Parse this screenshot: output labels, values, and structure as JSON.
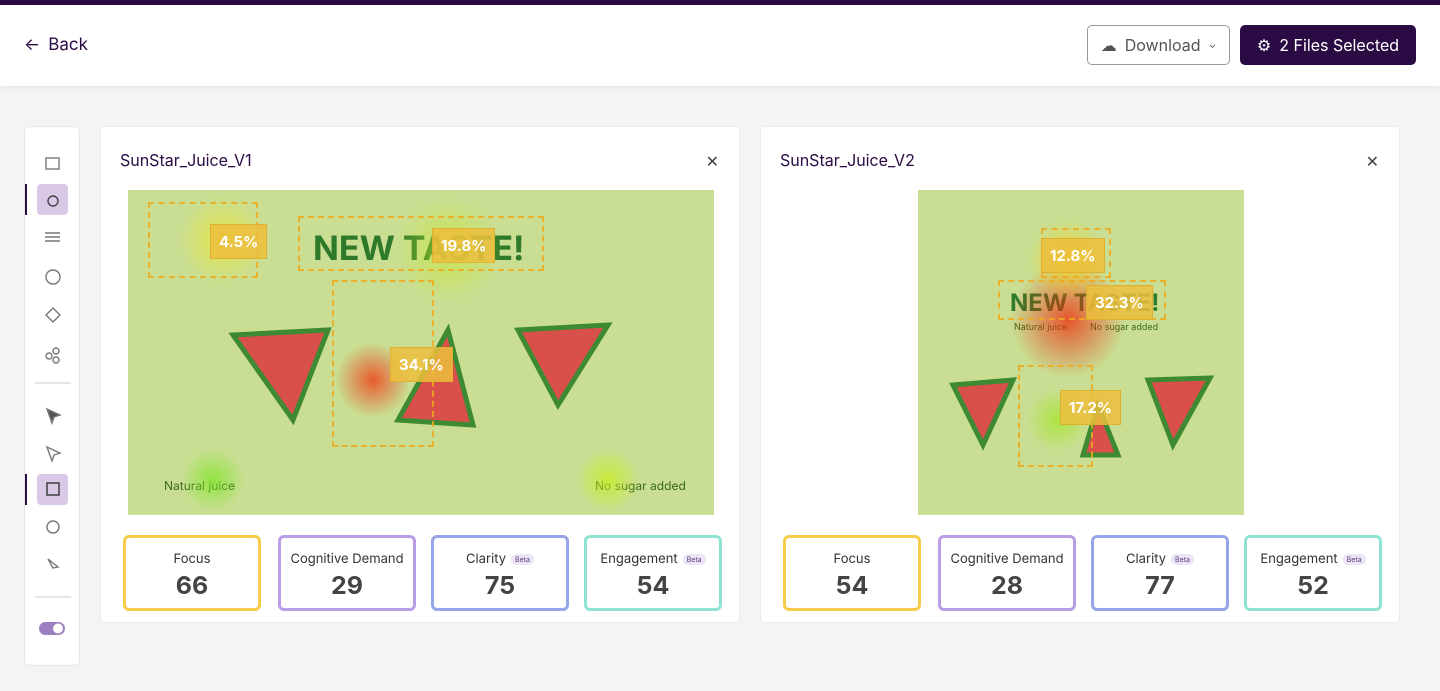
{
  "header": {
    "back": "Back",
    "download": "Download",
    "selected": "2 Files Selected"
  },
  "panels": [
    {
      "title": "SunStar_Juice_V1",
      "image": {
        "headline": "NEW TASTE!",
        "left_text": "Natural juice",
        "right_text": "No sugar added",
        "labels": [
          "4.5%",
          "19.8%",
          "34.1%"
        ]
      },
      "metrics": [
        {
          "name": "Focus",
          "value": 66
        },
        {
          "name": "Cognitive Demand",
          "value": 29
        },
        {
          "name": "Clarity",
          "badge": "Beta",
          "value": 75
        },
        {
          "name": "Engagement",
          "badge": "Beta",
          "value": 54
        }
      ]
    },
    {
      "title": "SunStar_Juice_V2",
      "image": {
        "headline": "NEW TASTE!",
        "left_text": "Natural juice",
        "right_text": "No sugar added",
        "labels": [
          "12.8%",
          "32.3%",
          "17.2%"
        ]
      },
      "metrics": [
        {
          "name": "Focus",
          "value": 54
        },
        {
          "name": "Cognitive Demand",
          "value": 28
        },
        {
          "name": "Clarity",
          "badge": "Beta",
          "value": 77
        },
        {
          "name": "Engagement",
          "badge": "Beta",
          "value": 52
        }
      ]
    }
  ]
}
